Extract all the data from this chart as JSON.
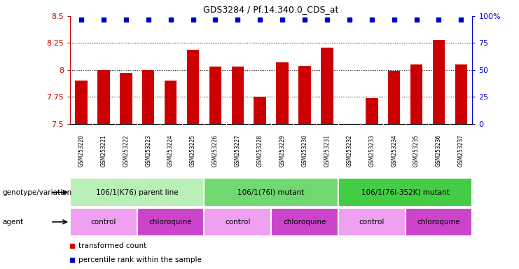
{
  "title": "GDS3284 / Pf.14.340.0_CDS_at",
  "samples": [
    "GSM253220",
    "GSM253221",
    "GSM253222",
    "GSM253223",
    "GSM253224",
    "GSM253225",
    "GSM253226",
    "GSM253227",
    "GSM253228",
    "GSM253229",
    "GSM253230",
    "GSM253231",
    "GSM253232",
    "GSM253233",
    "GSM253234",
    "GSM253235",
    "GSM253236",
    "GSM253237"
  ],
  "bar_values": [
    7.9,
    8.0,
    7.97,
    8.0,
    7.9,
    8.19,
    8.03,
    8.03,
    7.75,
    8.07,
    8.04,
    8.21,
    7.5,
    7.74,
    7.99,
    8.05,
    8.28,
    8.05
  ],
  "bar_color": "#cc0000",
  "dot_color": "#0000cc",
  "ylim_left": [
    7.5,
    8.5
  ],
  "ylim_right": [
    0,
    100
  ],
  "yticks_left": [
    7.5,
    7.75,
    8.0,
    8.25,
    8.5
  ],
  "yticks_right": [
    0,
    25,
    50,
    75,
    100
  ],
  "ytick_labels_left": [
    "7.5",
    "7.75",
    "8",
    "8.25",
    "8.5"
  ],
  "ytick_labels_right": [
    "0",
    "25",
    "50",
    "75",
    "100%"
  ],
  "grid_values": [
    7.75,
    8.0,
    8.25
  ],
  "genotype_groups": [
    {
      "label": "106/1(K76) parent line",
      "start": 0,
      "end": 5,
      "color": "#b8f0b8"
    },
    {
      "label": "106/1(76I) mutant",
      "start": 6,
      "end": 11,
      "color": "#70d870"
    },
    {
      "label": "106/1(76I-352K) mutant",
      "start": 12,
      "end": 17,
      "color": "#44cc44"
    }
  ],
  "agent_groups": [
    {
      "label": "control",
      "start": 0,
      "end": 2,
      "color": "#f0a0f0"
    },
    {
      "label": "chloroquine",
      "start": 3,
      "end": 5,
      "color": "#cc44cc"
    },
    {
      "label": "control",
      "start": 6,
      "end": 8,
      "color": "#f0a0f0"
    },
    {
      "label": "chloroquine",
      "start": 9,
      "end": 11,
      "color": "#cc44cc"
    },
    {
      "label": "control",
      "start": 12,
      "end": 14,
      "color": "#f0a0f0"
    },
    {
      "label": "chloroquine",
      "start": 15,
      "end": 17,
      "color": "#cc44cc"
    }
  ],
  "legend_items": [
    {
      "label": "transformed count",
      "color": "#cc0000"
    },
    {
      "label": "percentile rank within the sample",
      "color": "#0000cc"
    }
  ],
  "genotype_label": "genotype/variation",
  "agent_label": "agent",
  "tick_color_left": "#cc0000",
  "tick_color_right": "#0000cc",
  "xtick_bg_color": "#d8d8d8",
  "bar_width": 0.55
}
